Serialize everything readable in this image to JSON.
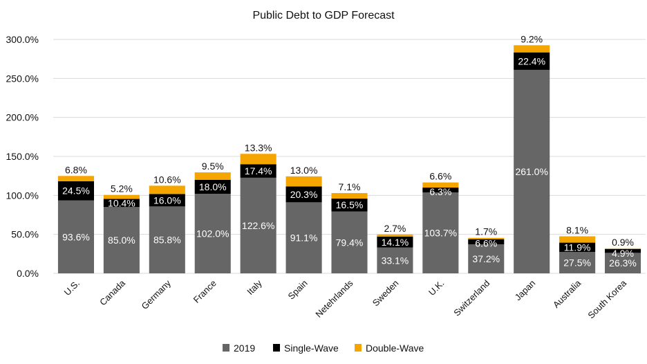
{
  "chart_data": {
    "type": "bar",
    "stacked": true,
    "title": "Public Debt to GDP Forecast",
    "xlabel": "",
    "ylabel": "",
    "ylim": [
      0,
      300
    ],
    "yticks": [
      "0.0%",
      "50.0%",
      "100.0%",
      "150.0%",
      "200.0%",
      "250.0%",
      "300.0%"
    ],
    "ytick_values": [
      0,
      50,
      100,
      150,
      200,
      250,
      300
    ],
    "grid": true,
    "legend_position": "bottom",
    "categories": [
      "U.S.",
      "Canada",
      "Germany",
      "France",
      "Italy",
      "Spain",
      "Netehrlands",
      "Sweden",
      "U.K.",
      "Switzerland",
      "Japan",
      "Australia",
      "South Korea"
    ],
    "series": [
      {
        "name": "2019",
        "color": "#666666",
        "label_color": "#ffffff",
        "values": [
          93.6,
          85.0,
          85.8,
          102.0,
          122.6,
          91.1,
          79.4,
          33.1,
          103.7,
          37.2,
          261.0,
          27.5,
          26.3
        ],
        "labels": [
          "93.6%",
          "85.0%",
          "85.8%",
          "102.0%",
          "122.6%",
          "91.1%",
          "79.4%",
          "33.1%",
          "103.7%",
          "37.2%",
          "261.0%",
          "27.5%",
          "26.3%"
        ]
      },
      {
        "name": "Single-Wave",
        "color": "#000000",
        "label_color": "#ffffff",
        "values": [
          24.5,
          10.4,
          16.0,
          18.0,
          17.4,
          20.3,
          16.5,
          14.1,
          6.3,
          6.6,
          22.4,
          11.9,
          4.9
        ],
        "labels": [
          "24.5%",
          "10.4%",
          "16.0%",
          "18.0%",
          "17.4%",
          "20.3%",
          "16.5%",
          "14.1%",
          "6.3%",
          "6.6%",
          "22.4%",
          "11.9%",
          "4.9%"
        ]
      },
      {
        "name": "Double-Wave",
        "color": "#f5a500",
        "label_color": "#111111",
        "values": [
          6.8,
          5.2,
          10.6,
          9.5,
          13.3,
          13.0,
          7.1,
          2.7,
          6.6,
          1.7,
          9.2,
          8.1,
          0.9
        ],
        "labels": [
          "6.8%",
          "5.2%",
          "10.6%",
          "9.5%",
          "13.3%",
          "13.0%",
          "7.1%",
          "2.7%",
          "6.6%",
          "1.7%",
          "9.2%",
          "8.1%",
          "0.9%"
        ]
      }
    ]
  }
}
